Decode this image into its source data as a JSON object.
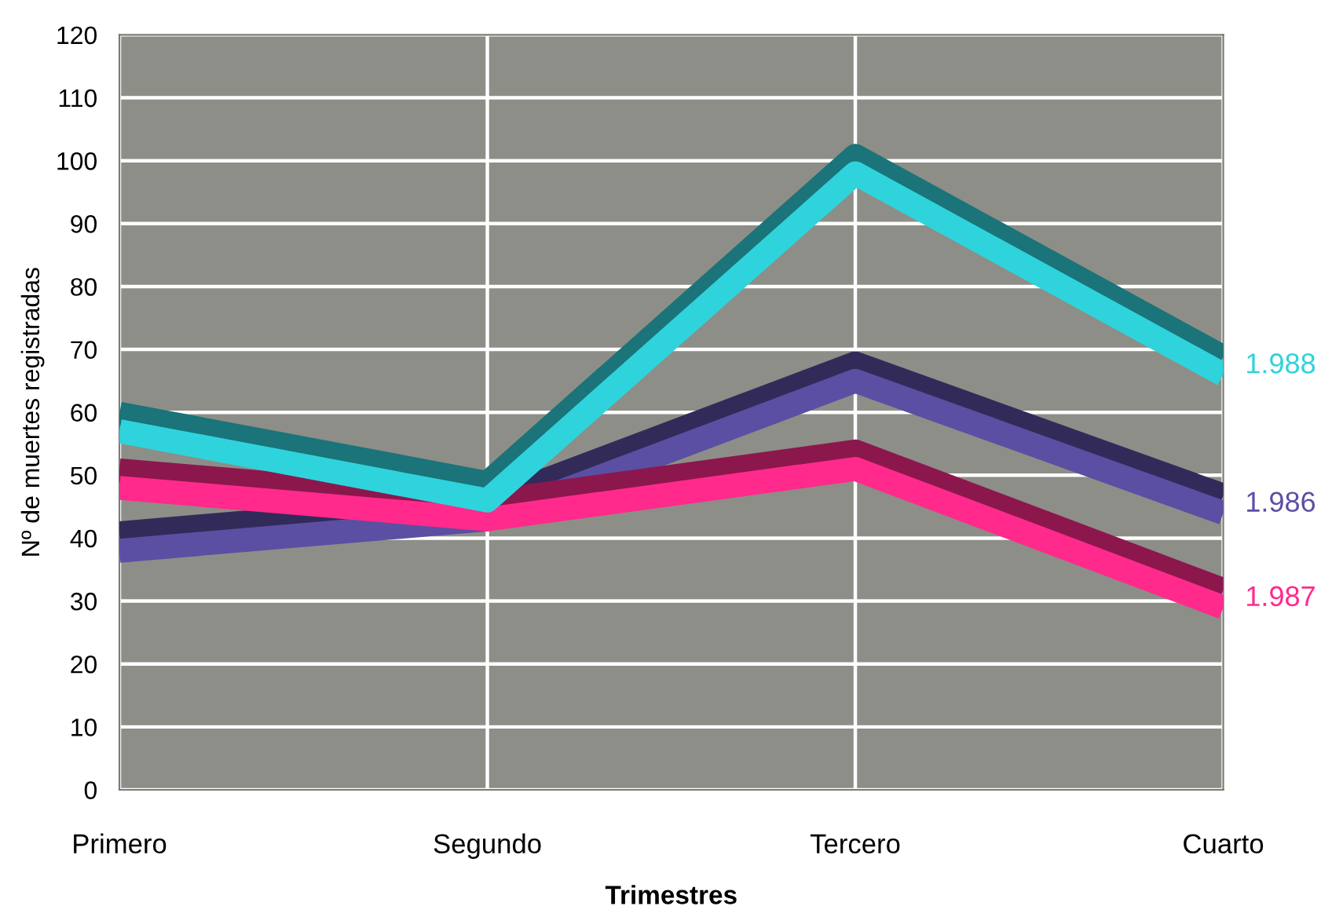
{
  "chart_data": {
    "type": "line",
    "categories": [
      "Primero",
      "Segundo",
      "Tercero",
      "Cuarto"
    ],
    "series": [
      {
        "name": "1.986",
        "color": "#5b4fa3",
        "values": [
          38,
          43,
          65,
          44
        ]
      },
      {
        "name": "1.987",
        "color": "#ff2a8c",
        "values": [
          48,
          43,
          51,
          29
        ]
      },
      {
        "name": "1.988",
        "color": "#2fd3dc",
        "values": [
          57,
          46,
          98,
          66
        ]
      }
    ],
    "xlabel": "Trimestres",
    "ylabel": "Nº de muertes registradas",
    "ylim": [
      0,
      120
    ],
    "yticks": [
      0,
      10,
      20,
      30,
      40,
      50,
      60,
      70,
      80,
      90,
      100,
      110,
      120
    ],
    "grid": true
  }
}
